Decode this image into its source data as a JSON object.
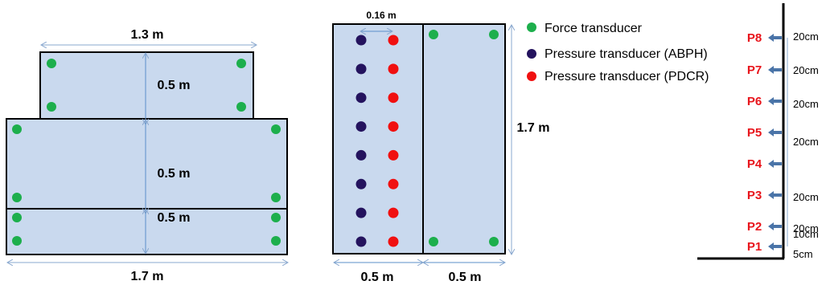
{
  "colors": {
    "panel_fill": "#c9d9ee",
    "panel_stroke": "#000000",
    "dimension_line": "#5b8fc9",
    "force_transducer": "#1daf4c",
    "pressure_abph": "#24135e",
    "pressure_pdcr": "#f01010",
    "probe_label": "#e8141b",
    "arrow": "#4a74a8"
  },
  "left_view": {
    "top_width_label": "1.3 m",
    "bottom_width_label": "1.7 m",
    "height_labels": [
      "0.5 m",
      "0.5 m",
      "0.5 m"
    ]
  },
  "middle_view": {
    "spacing_label": "0.16 m",
    "height_label": "1.7 m",
    "width_labels": [
      "0.5 m",
      "0.5 m"
    ],
    "sensor_rows": 8
  },
  "legend": {
    "items": [
      {
        "label": "Force transducer",
        "color_key": "force_transducer"
      },
      {
        "label": "Pressure transducer (ABPH)",
        "color_key": "pressure_abph"
      },
      {
        "label": "Pressure transducer (PDCR)",
        "color_key": "pressure_pdcr"
      }
    ]
  },
  "right_view": {
    "probes": [
      "P8",
      "P7",
      "P6",
      "P5",
      "P4",
      "P3",
      "P2",
      "P1"
    ],
    "spacings": [
      "20cm",
      "20cm",
      "20cm",
      "20cm",
      "20cm",
      "20cm",
      "10cm",
      "5cm"
    ]
  }
}
